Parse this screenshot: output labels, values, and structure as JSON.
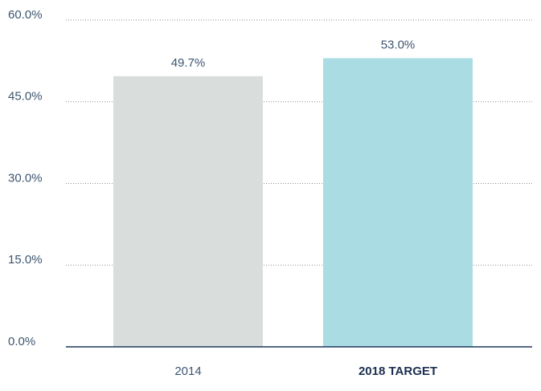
{
  "chart_data": {
    "type": "bar",
    "categories": [
      "2014",
      "2018 TARGET"
    ],
    "values": [
      49.7,
      53.0
    ],
    "value_labels": [
      "49.7%",
      "53.0%"
    ],
    "colors": [
      "#d9dedd",
      "#a9dde3"
    ],
    "ylim": [
      0,
      60
    ],
    "yticks": [
      {
        "value": 0,
        "label": "0.0%"
      },
      {
        "value": 15,
        "label": "15.0%"
      },
      {
        "value": 30,
        "label": "30.0%"
      },
      {
        "value": 45,
        "label": "45.0%"
      },
      {
        "value": 60,
        "label": "60.0%"
      }
    ],
    "grid": true
  }
}
